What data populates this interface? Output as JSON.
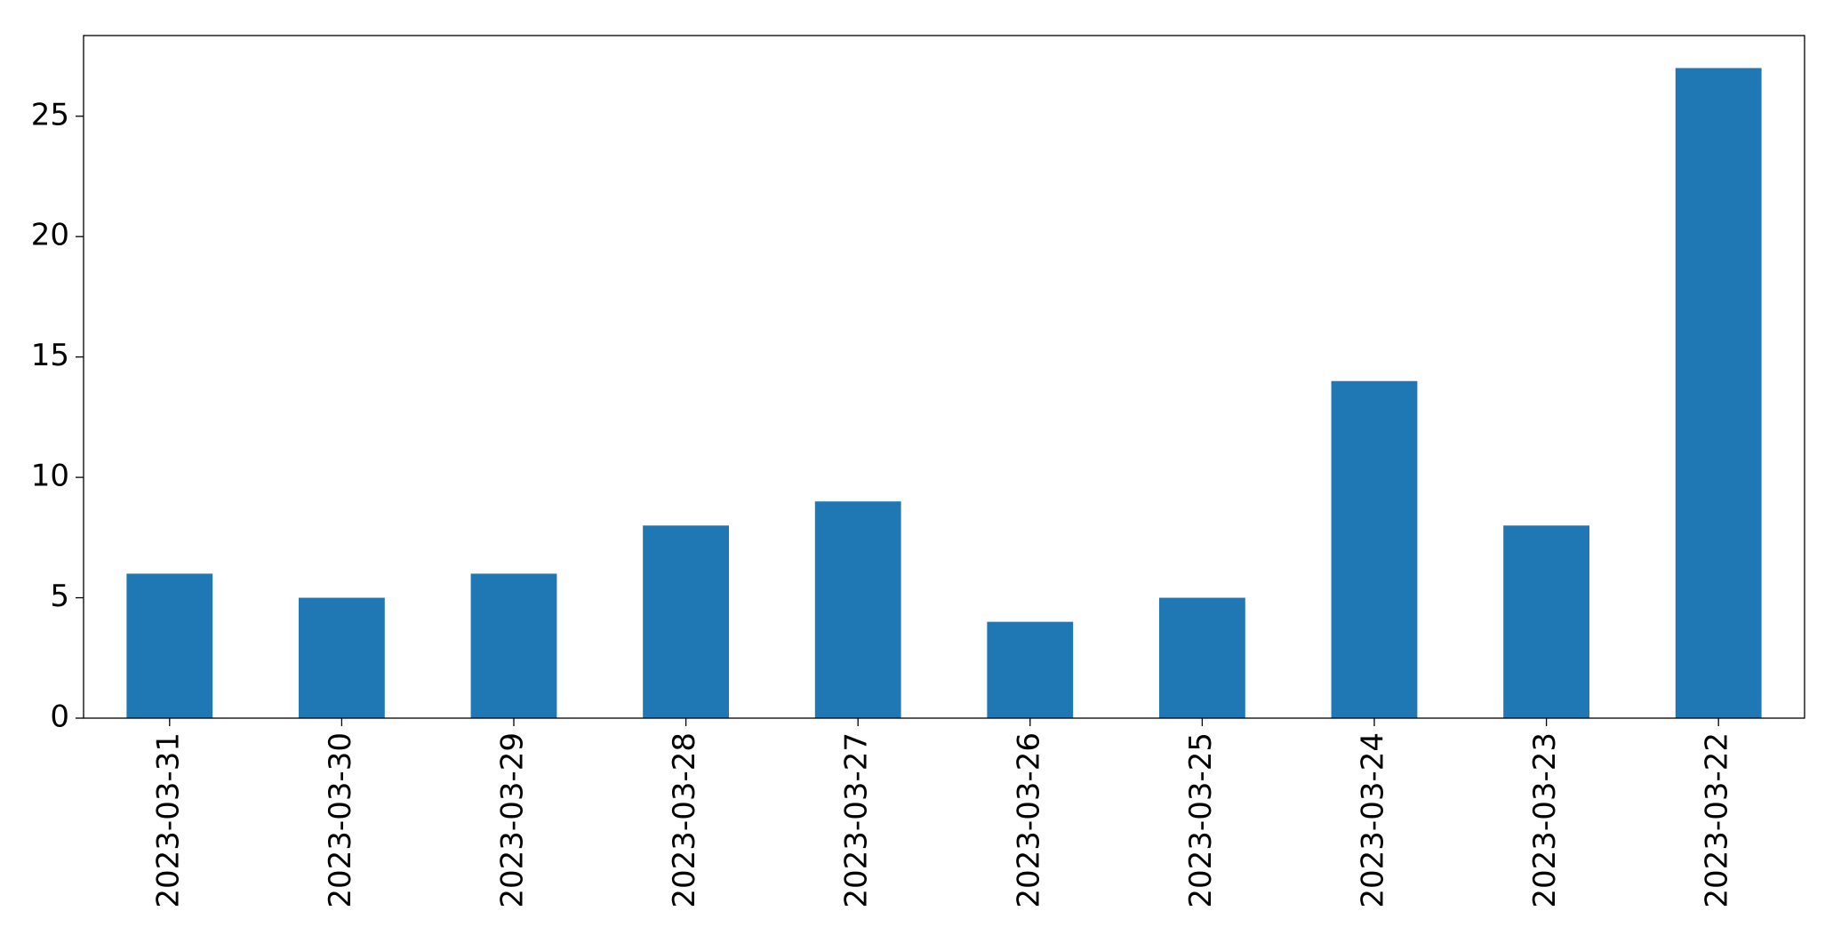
{
  "chart_data": {
    "type": "bar",
    "categories": [
      "2023-03-31",
      "2023-03-30",
      "2023-03-29",
      "2023-03-28",
      "2023-03-27",
      "2023-03-26",
      "2023-03-25",
      "2023-03-24",
      "2023-03-23",
      "2023-03-22"
    ],
    "values": [
      6,
      5,
      6,
      8,
      9,
      4,
      5,
      14,
      8,
      27
    ],
    "color": "#1f77b4",
    "ylim": [
      0,
      28.35
    ],
    "yticks": [
      0,
      5,
      10,
      15,
      20,
      25
    ],
    "grid": false
  }
}
